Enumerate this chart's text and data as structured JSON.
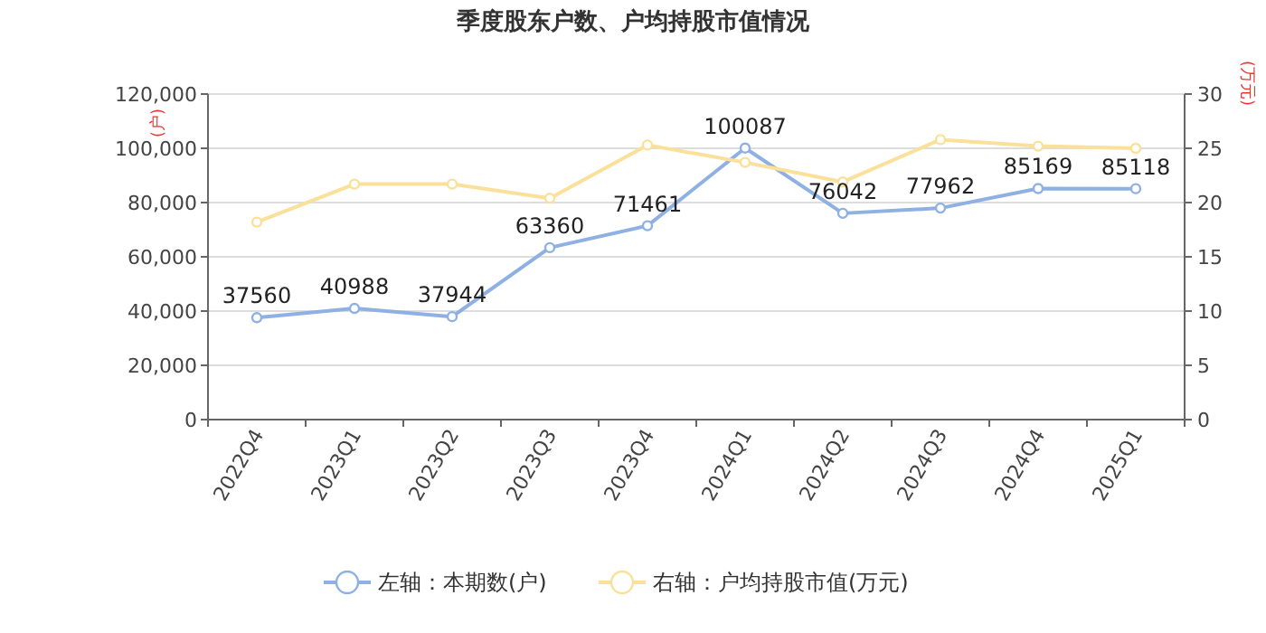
{
  "chart_data": {
    "type": "line",
    "title": "季度股东户数、户均持股市值情况",
    "ylabel": "(户)",
    "y2label": "(万元)",
    "categories": [
      "2022Q4",
      "2023Q1",
      "2023Q2",
      "2023Q3",
      "2023Q4",
      "2024Q1",
      "2024Q2",
      "2024Q3",
      "2024Q4",
      "2025Q1"
    ],
    "series": [
      {
        "name": "左轴：本期数(户)",
        "color": "#8fb0e3",
        "values": [
          37560,
          40988,
          37944,
          63360,
          71461,
          100087,
          76042,
          77962,
          85169,
          85118
        ],
        "value_labels": [
          "37560",
          "40988",
          "37944",
          "63360",
          "71461",
          "100087",
          "76042",
          "77962",
          "85169",
          "85118"
        ]
      },
      {
        "name": "右轴：户均持股市值(万元)",
        "color": "#fbe09a",
        "axis": "y2",
        "values": [
          18.2,
          21.7,
          21.7,
          20.4,
          25.3,
          23.7,
          21.9,
          25.8,
          25.2,
          25.0
        ]
      }
    ],
    "ylim": [
      0,
      120000
    ],
    "yticks": [
      {
        "value": 0,
        "label": "0"
      },
      {
        "value": 20000,
        "label": "20,000"
      },
      {
        "value": 40000,
        "label": "40,000"
      },
      {
        "value": 60000,
        "label": "60,000"
      },
      {
        "value": 80000,
        "label": "80,000"
      },
      {
        "value": 100000,
        "label": "100,000"
      },
      {
        "value": 120000,
        "label": "120,000"
      }
    ],
    "y2lim": [
      0,
      30
    ],
    "y2ticks": [
      0,
      5,
      10,
      15,
      20,
      25,
      30
    ],
    "grid": "y",
    "legend": "bottom",
    "marker": "circle",
    "line_style": "solid"
  }
}
